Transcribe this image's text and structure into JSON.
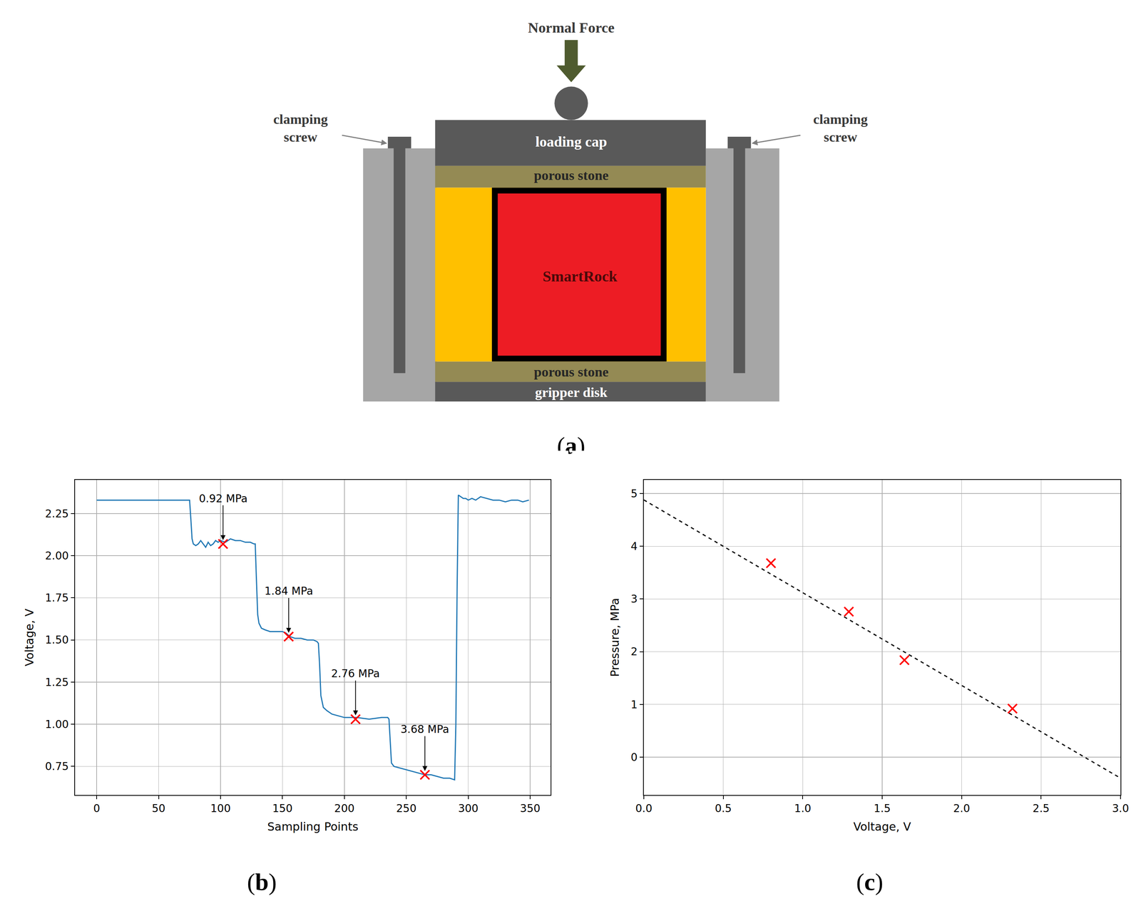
{
  "diagram": {
    "panel": "(a)",
    "normal_force": "Normal Force",
    "clamping_screw_left": "clamping screw",
    "clamping_screw_right": "clamping screw",
    "loading_cap": "loading cap",
    "porous_stone_top": "porous stone",
    "porous_stone_bottom": "porous stone",
    "specimen": "SmartRock",
    "gripper_disk": "gripper disk"
  },
  "chart_data": [
    {
      "panel": "(b)",
      "type": "line",
      "x_label": "Sampling Points",
      "y_label": "Voltage, V",
      "grid": true,
      "xlim": [
        -17.5,
        366.5
      ],
      "xticks": [
        0,
        50,
        100,
        150,
        200,
        250,
        300,
        350
      ],
      "ylim": [
        0.58,
        2.45
      ],
      "yticks": [
        {
          "value": 0.75,
          "label": "0.75"
        },
        {
          "value": 1,
          "label": "1.00"
        },
        {
          "value": 1.25,
          "label": "1.25"
        },
        {
          "value": 1.5,
          "label": "1.50"
        },
        {
          "value": 1.75,
          "label": "1.75"
        },
        {
          "value": 2,
          "label": "2.00"
        },
        {
          "value": 2.25,
          "label": "2.25"
        }
      ],
      "series": [
        {
          "type": "line",
          "color": "#1f77b4",
          "x": [
            0,
            74,
            75,
            76,
            77,
            78,
            80,
            82,
            84,
            86,
            88,
            90,
            92,
            94,
            96,
            98,
            100,
            104,
            108,
            112,
            116,
            120,
            124,
            127,
            128,
            129,
            130,
            131,
            133,
            136,
            140,
            145,
            150,
            153,
            156,
            160,
            165,
            170,
            175,
            178,
            179,
            180,
            181,
            183,
            186,
            190,
            195,
            200,
            210,
            220,
            230,
            235,
            236,
            237,
            238,
            240,
            245,
            250,
            255,
            260,
            265,
            270,
            275,
            280,
            285,
            289,
            290,
            291,
            292,
            294,
            296,
            298,
            300,
            303,
            306,
            310,
            315,
            320,
            325,
            330,
            335,
            340,
            344,
            349
          ],
          "values": [
            2.33,
            2.33,
            2.33,
            2.22,
            2.1,
            2.07,
            2.06,
            2.07,
            2.09,
            2.07,
            2.05,
            2.08,
            2.06,
            2.07,
            2.09,
            2.08,
            2.09,
            2.08,
            2.1,
            2.09,
            2.09,
            2.08,
            2.08,
            2.07,
            2.07,
            1.85,
            1.65,
            1.6,
            1.57,
            1.56,
            1.55,
            1.55,
            1.55,
            1.54,
            1.52,
            1.51,
            1.51,
            1.5,
            1.5,
            1.49,
            1.48,
            1.35,
            1.17,
            1.1,
            1.08,
            1.06,
            1.05,
            1.04,
            1.04,
            1.03,
            1.04,
            1.04,
            1.03,
            0.9,
            0.77,
            0.75,
            0.74,
            0.73,
            0.72,
            0.71,
            0.7,
            0.7,
            0.69,
            0.68,
            0.68,
            0.67,
            1.0,
            1.8,
            2.36,
            2.35,
            2.34,
            2.34,
            2.33,
            2.34,
            2.33,
            2.35,
            2.34,
            2.33,
            2.33,
            2.32,
            2.33,
            2.33,
            2.32,
            2.33
          ]
        },
        {
          "type": "scatter",
          "marker": "x",
          "color": "red",
          "x": [
            102,
            155,
            209,
            265
          ],
          "values": [
            2.07,
            1.52,
            1.03,
            0.7
          ],
          "annotations": [
            "0.92 MPa",
            "1.84 MPa",
            "2.76 MPa",
            "3.68 MPa"
          ]
        }
      ]
    },
    {
      "panel": "(c)",
      "type": "scatter",
      "x_label": "Voltage, V",
      "y_label": "Pressure, MPa",
      "grid": true,
      "xlim": [
        0,
        3
      ],
      "xticks": [
        {
          "value": 0,
          "label": "0.0"
        },
        {
          "value": 0.5,
          "label": "0.5"
        },
        {
          "value": 1,
          "label": "1.0"
        },
        {
          "value": 1.5,
          "label": "1.5"
        },
        {
          "value": 2,
          "label": "2.0"
        },
        {
          "value": 2.5,
          "label": "2.5"
        },
        {
          "value": 3,
          "label": "3.0"
        }
      ],
      "ylim": [
        -0.72,
        5.26
      ],
      "yticks": [
        0,
        1,
        2,
        3,
        4,
        5
      ],
      "series": [
        {
          "type": "line",
          "line_style": "dashed",
          "color": "black",
          "x": [
            0,
            3
          ],
          "values": [
            4.88,
            -0.4
          ]
        },
        {
          "type": "scatter",
          "marker": "x",
          "color": "red",
          "x": [
            0.8,
            1.29,
            1.64,
            2.32
          ],
          "values": [
            3.68,
            2.76,
            1.84,
            0.92
          ]
        }
      ]
    }
  ]
}
